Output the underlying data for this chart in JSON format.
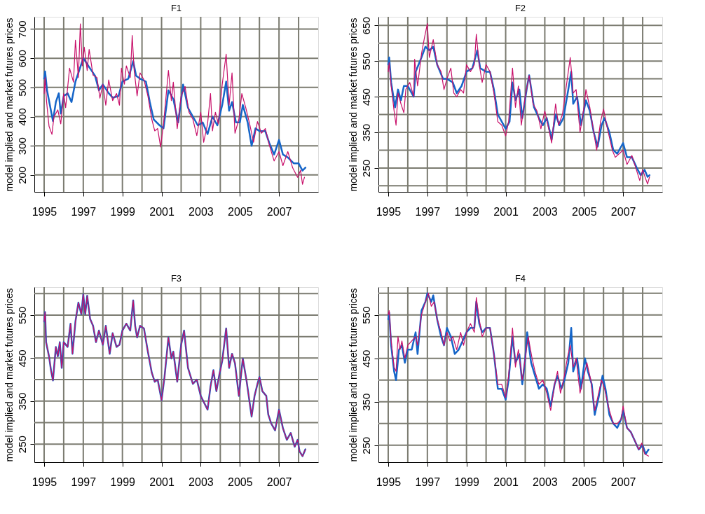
{
  "chart_data": [
    {
      "type": "line",
      "title": "F1",
      "ylabel": "model implied and market futures prices",
      "grid": true,
      "xlim": [
        1994.5,
        2009
      ],
      "ylim": [
        142,
        742
      ],
      "xticks": [
        1995,
        {
          "value": 1996,
          "label": null
        },
        1997,
        {
          "value": 1998,
          "label": null
        },
        1999,
        {
          "value": 2000,
          "label": null
        },
        2001,
        {
          "value": 2002,
          "label": null
        },
        2003,
        {
          "value": 2004,
          "label": null
        },
        2005,
        {
          "value": 2006,
          "label": null
        },
        2007,
        {
          "value": 2008,
          "label": null
        }
      ],
      "yticks": [
        200,
        300,
        400,
        500,
        600,
        700
      ],
      "series": [
        {
          "color": "#1565c8",
          "x": [
            1995.0,
            1995.05,
            1995.15,
            1995.35,
            1995.45,
            1995.6,
            1995.75,
            1995.85,
            1996.0,
            1996.2,
            1996.4,
            1996.6,
            1996.8,
            1997.0,
            1997.2,
            1997.4,
            1997.6,
            1997.8,
            1998.0,
            1998.3,
            1998.5,
            1998.8,
            1999.0,
            1999.3,
            1999.55,
            1999.7,
            1999.9,
            2000.2,
            2000.4,
            2000.6,
            2000.9,
            2001.1,
            2001.35,
            2001.6,
            2001.85,
            2002.1,
            2002.35,
            2002.6,
            2002.85,
            2003.1,
            2003.35,
            2003.6,
            2003.85,
            2004.1,
            2004.3,
            2004.45,
            2004.6,
            2004.8,
            2005.0,
            2005.15,
            2005.4,
            2005.6,
            2005.8,
            2006.0,
            2006.3,
            2006.5,
            2006.75,
            2007.0,
            2007.2,
            2007.45,
            2007.75,
            2008.0,
            2008.2,
            2008.35
          ],
          "values": [
            530,
            555,
            490,
            420,
            385,
            450,
            480,
            410,
            470,
            480,
            450,
            520,
            560,
            600,
            580,
            560,
            540,
            490,
            510,
            480,
            465,
            470,
            520,
            530,
            590,
            540,
            530,
            520,
            450,
            390,
            370,
            360,
            490,
            460,
            380,
            510,
            430,
            400,
            370,
            380,
            340,
            400,
            370,
            440,
            520,
            420,
            450,
            380,
            380,
            440,
            380,
            300,
            360,
            350,
            350,
            310,
            270,
            320,
            270,
            260,
            240,
            240,
            215,
            225
          ]
        },
        {
          "color": "#c8106a",
          "x": [
            1995.0,
            1995.05,
            1995.12,
            1995.25,
            1995.4,
            1995.5,
            1995.7,
            1995.85,
            1996.0,
            1996.1,
            1996.3,
            1996.5,
            1996.6,
            1996.75,
            1996.85,
            1996.95,
            1997.05,
            1997.2,
            1997.3,
            1997.5,
            1997.7,
            1997.85,
            1998.0,
            1998.15,
            1998.3,
            1998.5,
            1998.7,
            1998.85,
            1998.95,
            1999.1,
            1999.2,
            1999.4,
            1999.5,
            1999.6,
            1999.75,
            1999.9,
            2000.1,
            2000.3,
            2000.5,
            2000.65,
            2000.8,
            2000.95,
            2001.1,
            2001.35,
            2001.5,
            2001.6,
            2001.8,
            2002.0,
            2002.2,
            2002.4,
            2002.6,
            2002.8,
            2003.0,
            2003.15,
            2003.35,
            2003.5,
            2003.6,
            2003.75,
            2003.9,
            2004.1,
            2004.3,
            2004.45,
            2004.6,
            2004.75,
            2004.95,
            2005.1,
            2005.3,
            2005.5,
            2005.7,
            2005.9,
            2006.1,
            2006.3,
            2006.5,
            2006.75,
            2007.0,
            2007.2,
            2007.45,
            2007.7,
            2007.95,
            2008.1,
            2008.2,
            2008.3
          ],
          "values": [
            479,
            534,
            455,
            367,
            339,
            399,
            423,
            375,
            479,
            431,
            566,
            518,
            662,
            534,
            718,
            574,
            638,
            558,
            630,
            542,
            534,
            463,
            511,
            439,
            526,
            455,
            479,
            439,
            566,
            511,
            574,
            534,
            678,
            558,
            471,
            550,
            526,
            471,
            391,
            351,
            359,
            296,
            375,
            558,
            455,
            518,
            359,
            471,
            503,
            415,
            391,
            335,
            415,
            312,
            375,
            479,
            351,
            415,
            375,
            511,
            614,
            439,
            550,
            343,
            391,
            479,
            431,
            375,
            312,
            383,
            343,
            359,
            304,
            248,
            280,
            232,
            280,
            224,
            192,
            216,
            168,
            192
          ]
        }
      ]
    },
    {
      "type": "line",
      "title": "F2",
      "ylabel": "model implied and market futures prices",
      "grid": true,
      "xlim": [
        1994.5,
        2009
      ],
      "ylim": [
        183,
        674
      ],
      "xticks": [
        1995,
        {
          "value": 1996,
          "label": null
        },
        1997,
        {
          "value": 1998,
          "label": null
        },
        1999,
        {
          "value": 2000,
          "label": null
        },
        2001,
        {
          "value": 2002,
          "label": null
        },
        2003,
        {
          "value": 2004,
          "label": null
        },
        2005,
        {
          "value": 2006,
          "label": null
        },
        2007,
        {
          "value": 2008,
          "label": null
        }
      ],
      "yticks": [
        {
          "value": 200,
          "label": null
        },
        250,
        {
          "value": 300,
          "label": null
        },
        350,
        {
          "value": 400,
          "label": null
        },
        450,
        {
          "value": 500,
          "label": null
        },
        550,
        {
          "value": 600,
          "label": null
        },
        650
      ],
      "series": [
        {
          "color": "#1565c8",
          "x": [
            1995.0,
            1995.05,
            1995.15,
            1995.35,
            1995.5,
            1995.65,
            1995.8,
            1996.0,
            1996.3,
            1996.4,
            1996.7,
            1996.9,
            1997.1,
            1997.3,
            1997.5,
            1997.8,
            1998.0,
            1998.3,
            1998.5,
            1998.75,
            1999.0,
            1999.3,
            1999.55,
            1999.7,
            2000.0,
            2000.2,
            2000.4,
            2000.6,
            2000.8,
            2001.0,
            2001.2,
            2001.35,
            2001.5,
            2001.7,
            2001.85,
            2002.1,
            2002.2,
            2002.45,
            2002.7,
            2002.9,
            2003.1,
            2003.35,
            2003.55,
            2003.75,
            2003.95,
            2004.2,
            2004.35,
            2004.45,
            2004.65,
            2004.85,
            2005.1,
            2005.3,
            2005.5,
            2005.7,
            2005.9,
            2006.05,
            2006.3,
            2006.5,
            2006.7,
            2007.0,
            2007.2,
            2007.45,
            2007.7,
            2007.9,
            2008.1,
            2008.25,
            2008.35
          ],
          "values": [
            540,
            560,
            490,
            420,
            470,
            440,
            480,
            480,
            450,
            520,
            560,
            590,
            580,
            590,
            540,
            500,
            500,
            490,
            460,
            480,
            520,
            530,
            580,
            530,
            520,
            520,
            470,
            400,
            380,
            360,
            380,
            490,
            440,
            470,
            390,
            480,
            510,
            420,
            390,
            370,
            390,
            330,
            400,
            370,
            390,
            470,
            520,
            430,
            450,
            370,
            440,
            410,
            350,
            310,
            370,
            390,
            350,
            300,
            290,
            320,
            280,
            280,
            250,
            230,
            245,
            225,
            230
          ]
        },
        {
          "color": "#c8106a",
          "x": [
            1995.0,
            1995.05,
            1995.15,
            1995.3,
            1995.4,
            1995.5,
            1995.65,
            1995.8,
            1995.9,
            1996.1,
            1996.3,
            1996.35,
            1996.5,
            1996.7,
            1996.85,
            1997.0,
            1997.1,
            1997.3,
            1997.5,
            1997.7,
            1997.85,
            1998.0,
            1998.2,
            1998.35,
            1998.5,
            1998.7,
            1998.85,
            1999.0,
            1999.2,
            1999.4,
            1999.5,
            1999.65,
            1999.8,
            2000.0,
            2000.2,
            2000.4,
            2000.6,
            2000.8,
            2001.0,
            2001.15,
            2001.35,
            2001.5,
            2001.65,
            2001.8,
            2002.0,
            2002.2,
            2002.4,
            2002.6,
            2002.8,
            2003.0,
            2003.2,
            2003.35,
            2003.55,
            2003.7,
            2003.9,
            2004.1,
            2004.3,
            2004.45,
            2004.6,
            2004.8,
            2005.0,
            2005.1,
            2005.3,
            2005.5,
            2005.65,
            2005.85,
            2006.0,
            2006.2,
            2006.45,
            2006.6,
            2006.8,
            2007.0,
            2007.2,
            2007.45,
            2007.65,
            2007.85,
            2008.0,
            2008.15,
            2008.25,
            2008.35
          ],
          "values": [
            520,
            545,
            480,
            410,
            370,
            460,
            430,
            405,
            470,
            490,
            450,
            555,
            480,
            570,
            615,
            655,
            560,
            610,
            540,
            520,
            470,
            500,
            530,
            460,
            450,
            470,
            460,
            540,
            520,
            540,
            625,
            540,
            490,
            540,
            520,
            460,
            380,
            370,
            340,
            380,
            530,
            420,
            480,
            370,
            450,
            510,
            430,
            410,
            360,
            410,
            360,
            320,
            430,
            370,
            400,
            480,
            560,
            460,
            470,
            350,
            420,
            470,
            420,
            350,
            300,
            380,
            415,
            360,
            300,
            280,
            290,
            300,
            260,
            285,
            250,
            215,
            245,
            220,
            205,
            225
          ]
        }
      ]
    },
    {
      "type": "line",
      "title": "F3",
      "ylabel": "model implied and market futures prices",
      "grid": true,
      "xlim": [
        1994.5,
        2009
      ],
      "ylim": [
        208,
        615
      ],
      "xticks": [
        1995,
        {
          "value": 1996,
          "label": null
        },
        1997,
        {
          "value": 1998,
          "label": null
        },
        1999,
        {
          "value": 2000,
          "label": null
        },
        2001,
        {
          "value": 2002,
          "label": null
        },
        2003,
        {
          "value": 2004,
          "label": null
        },
        2005,
        {
          "value": 2006,
          "label": null
        },
        2007,
        {
          "value": 2008,
          "label": null
        }
      ],
      "yticks": [
        250,
        {
          "value": 300,
          "label": null
        },
        350,
        {
          "value": 400,
          "label": null
        },
        450,
        {
          "value": 500,
          "label": null
        },
        550,
        {
          "value": 600,
          "label": null
        }
      ],
      "series": [
        {
          "color": "#1565c8",
          "x": [
            1995.0,
            1995.05,
            1995.1,
            1995.25,
            1995.35,
            1995.45,
            1995.6,
            1995.7,
            1995.8,
            1995.9,
            1996.0,
            1996.2,
            1996.35,
            1996.45,
            1996.6,
            1996.75,
            1996.9,
            1997.0,
            1997.1,
            1997.2,
            1997.35,
            1997.5,
            1997.65,
            1997.8,
            1998.0,
            1998.15,
            1998.35,
            1998.5,
            1998.7,
            1998.85,
            1999.0,
            1999.2,
            1999.4,
            1999.55,
            1999.65,
            1999.75,
            1999.9,
            2000.1,
            2000.3,
            2000.5,
            2000.65,
            2000.8,
            2001.0,
            2001.15,
            2001.35,
            2001.5,
            2001.6,
            2001.8,
            2002.0,
            2002.15,
            2002.35,
            2002.6,
            2002.8,
            2003.0,
            2003.35,
            2003.5,
            2003.65,
            2003.8,
            2003.95,
            2004.1,
            2004.3,
            2004.45,
            2004.6,
            2004.75,
            2004.95,
            2005.05,
            2005.15,
            2005.35,
            2005.6,
            2005.75,
            2005.9,
            2006.0,
            2006.15,
            2006.35,
            2006.45,
            2006.6,
            2006.8,
            2007.0,
            2007.2,
            2007.4,
            2007.6,
            2007.8,
            2007.95,
            2008.05,
            2008.2,
            2008.35
          ],
          "values": [
            535,
            557,
            487,
            454,
            422,
            398,
            476,
            454,
            487,
            427,
            487,
            476,
            530,
            460,
            535,
            579,
            552,
            598,
            552,
            595,
            541,
            525,
            487,
            514,
            481,
            525,
            460,
            508,
            476,
            481,
            514,
            530,
            514,
            584,
            525,
            498,
            525,
            519,
            465,
            416,
            395,
            400,
            352,
            406,
            498,
            449,
            465,
            395,
            481,
            514,
            427,
            390,
            400,
            362,
            330,
            384,
            422,
            373,
            411,
            444,
            519,
            427,
            460,
            438,
            362,
            406,
            449,
            395,
            314,
            362,
            390,
            406,
            373,
            362,
            319,
            298,
            282,
            330,
            287,
            260,
            276,
            244,
            260,
            233,
            222,
            238
          ]
        },
        {
          "color": "#c8106a",
          "x": [
            1995.0,
            1995.05,
            1995.1,
            1995.25,
            1995.35,
            1995.45,
            1995.6,
            1995.7,
            1995.8,
            1995.9,
            1996.0,
            1996.2,
            1996.35,
            1996.45,
            1996.6,
            1996.75,
            1996.9,
            1997.0,
            1997.1,
            1997.2,
            1997.35,
            1997.5,
            1997.65,
            1997.8,
            1998.0,
            1998.15,
            1998.35,
            1998.5,
            1998.7,
            1998.85,
            1999.0,
            1999.2,
            1999.4,
            1999.55,
            1999.65,
            1999.75,
            1999.9,
            2000.1,
            2000.3,
            2000.5,
            2000.65,
            2000.8,
            2001.0,
            2001.15,
            2001.35,
            2001.5,
            2001.6,
            2001.8,
            2002.0,
            2002.15,
            2002.35,
            2002.6,
            2002.8,
            2003.0,
            2003.35,
            2003.5,
            2003.65,
            2003.8,
            2003.95,
            2004.1,
            2004.3,
            2004.45,
            2004.6,
            2004.75,
            2004.95,
            2005.05,
            2005.15,
            2005.35,
            2005.6,
            2005.75,
            2005.9,
            2006.0,
            2006.15,
            2006.35,
            2006.45,
            2006.6,
            2006.8,
            2007.0,
            2007.2,
            2007.4,
            2007.6,
            2007.8,
            2007.95,
            2008.05,
            2008.2,
            2008.35
          ],
          "values": [
            535,
            557,
            487,
            454,
            422,
            398,
            476,
            454,
            487,
            427,
            487,
            476,
            530,
            460,
            535,
            579,
            552,
            598,
            552,
            595,
            541,
            525,
            487,
            514,
            481,
            525,
            460,
            508,
            476,
            481,
            514,
            530,
            514,
            584,
            525,
            498,
            525,
            519,
            465,
            416,
            395,
            400,
            352,
            406,
            498,
            449,
            465,
            395,
            481,
            514,
            427,
            390,
            400,
            362,
            330,
            384,
            422,
            373,
            411,
            444,
            519,
            427,
            460,
            438,
            362,
            406,
            449,
            395,
            314,
            362,
            390,
            406,
            373,
            362,
            319,
            298,
            282,
            330,
            287,
            260,
            276,
            244,
            260,
            233,
            222,
            238
          ]
        }
      ]
    },
    {
      "type": "line",
      "title": "F4",
      "ylabel": "model implied and market futures prices",
      "grid": true,
      "xlim": [
        1994.5,
        2009
      ],
      "ylim": [
        211,
        614
      ],
      "xticks": [
        1995,
        {
          "value": 1996,
          "label": null
        },
        1997,
        {
          "value": 1998,
          "label": null
        },
        1999,
        {
          "value": 2000,
          "label": null
        },
        2001,
        {
          "value": 2002,
          "label": null
        },
        2003,
        {
          "value": 2004,
          "label": null
        },
        2005,
        {
          "value": 2006,
          "label": null
        },
        2007,
        {
          "value": 2008,
          "label": null
        }
      ],
      "yticks": [
        250,
        {
          "value": 300,
          "label": null
        },
        350,
        {
          "value": 400,
          "label": null
        },
        450,
        {
          "value": 500,
          "label": null
        },
        550,
        {
          "value": 600,
          "label": null
        }
      ],
      "series": [
        {
          "color": "#1565c8",
          "x": [
            1995.0,
            1995.05,
            1995.15,
            1995.3,
            1995.4,
            1995.55,
            1995.7,
            1995.85,
            1996.0,
            1996.2,
            1996.4,
            1996.5,
            1996.7,
            1996.9,
            1997.0,
            1997.2,
            1997.3,
            1997.5,
            1997.7,
            1997.85,
            1998.0,
            1998.2,
            1998.4,
            1998.6,
            1998.8,
            1999.0,
            1999.2,
            1999.4,
            1999.5,
            1999.65,
            1999.8,
            2000.0,
            2000.2,
            2000.4,
            2000.6,
            2000.8,
            2001.0,
            2001.15,
            2001.35,
            2001.5,
            2001.7,
            2001.85,
            2002.0,
            2002.1,
            2002.3,
            2002.5,
            2002.7,
            2002.9,
            2003.1,
            2003.3,
            2003.5,
            2003.65,
            2003.85,
            2004.0,
            2004.2,
            2004.35,
            2004.45,
            2004.65,
            2004.85,
            2005.05,
            2005.2,
            2005.4,
            2005.55,
            2005.75,
            2005.95,
            2006.1,
            2006.3,
            2006.5,
            2006.7,
            2006.9,
            2007.0,
            2007.2,
            2007.4,
            2007.6,
            2007.8,
            2008.0,
            2008.15,
            2008.3
          ],
          "values": [
            540,
            555,
            480,
            420,
            400,
            470,
            480,
            440,
            470,
            470,
            510,
            460,
            560,
            580,
            600,
            580,
            595,
            540,
            500,
            480,
            520,
            500,
            460,
            470,
            490,
            510,
            520,
            520,
            580,
            530,
            510,
            520,
            520,
            460,
            380,
            380,
            355,
            400,
            500,
            440,
            460,
            390,
            450,
            510,
            440,
            410,
            380,
            390,
            380,
            340,
            390,
            410,
            380,
            400,
            440,
            520,
            420,
            450,
            380,
            450,
            420,
            390,
            320,
            360,
            410,
            380,
            320,
            300,
            290,
            310,
            330,
            290,
            280,
            260,
            240,
            250,
            230,
            240
          ]
        },
        {
          "color": "#c8106a",
          "x": [
            1995.0,
            1995.05,
            1995.15,
            1995.3,
            1995.4,
            1995.5,
            1995.6,
            1995.7,
            1995.85,
            1996.0,
            1996.2,
            1996.4,
            1996.5,
            1996.7,
            1996.9,
            1997.05,
            1997.2,
            1997.35,
            1997.5,
            1997.7,
            1997.85,
            1998.0,
            1998.15,
            1998.3,
            1998.5,
            1998.7,
            1998.85,
            1999.0,
            1999.2,
            1999.4,
            1999.5,
            1999.65,
            1999.8,
            2000.0,
            2000.2,
            2000.4,
            2000.6,
            2000.8,
            2001.0,
            2001.15,
            2001.35,
            2001.5,
            2001.65,
            2001.85,
            2002.0,
            2002.15,
            2002.35,
            2002.5,
            2002.7,
            2002.9,
            2003.1,
            2003.3,
            2003.5,
            2003.65,
            2003.8,
            2004.0,
            2004.15,
            2004.3,
            2004.45,
            2004.6,
            2004.8,
            2005.0,
            2005.15,
            2005.35,
            2005.55,
            2005.7,
            2005.9,
            2006.05,
            2006.3,
            2006.5,
            2006.7,
            2006.9,
            2007.0,
            2007.2,
            2007.4,
            2007.6,
            2007.8,
            2007.95,
            2008.1,
            2008.3
          ],
          "values": [
            550,
            560,
            490,
            430,
            420,
            500,
            470,
            490,
            450,
            480,
            490,
            500,
            480,
            550,
            580,
            600,
            570,
            580,
            540,
            510,
            480,
            510,
            490,
            500,
            470,
            510,
            480,
            510,
            530,
            510,
            590,
            540,
            500,
            520,
            520,
            460,
            390,
            390,
            360,
            410,
            520,
            430,
            470,
            400,
            450,
            500,
            450,
            420,
            390,
            400,
            370,
            330,
            390,
            420,
            370,
            410,
            450,
            480,
            430,
            450,
            370,
            410,
            440,
            400,
            330,
            360,
            400,
            380,
            330,
            300,
            300,
            310,
            340,
            290,
            280,
            260,
            240,
            255,
            230,
            225
          ]
        }
      ]
    }
  ]
}
